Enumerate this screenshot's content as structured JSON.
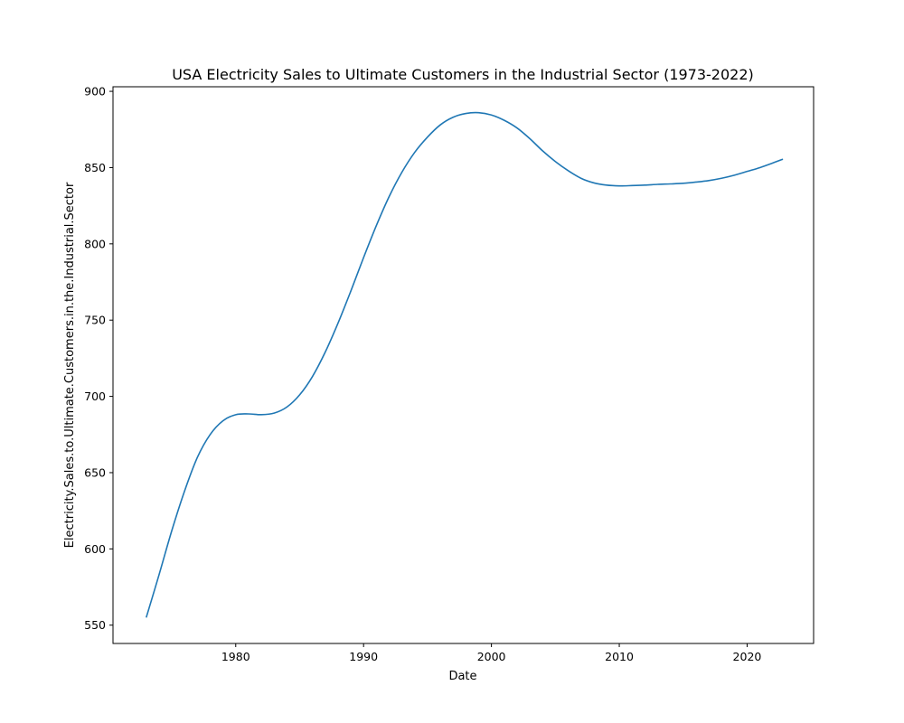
{
  "chart_data": {
    "type": "line",
    "title": "USA Electricity Sales to Ultimate Customers in the Industrial Sector (1973-2022)",
    "xlabel": "Date",
    "ylabel": "Electricity.Sales.to.Ultimate.Customers.in.the.Industrial.Sector",
    "xlim": [
      1970.4,
      2025.2
    ],
    "ylim": [
      538,
      903
    ],
    "x_ticks": [
      1980,
      1990,
      2000,
      2010,
      2020
    ],
    "y_ticks": [
      550,
      600,
      650,
      700,
      750,
      800,
      850,
      900
    ],
    "grid": false,
    "series_color": "#1f77b4",
    "series": [
      {
        "x": [
          1973.0,
          1974.0,
          1975.0,
          1976.0,
          1977.0,
          1978.0,
          1979.0,
          1980.0,
          1981.0,
          1982.0,
          1983.0,
          1984.0,
          1985.0,
          1986.0,
          1987.0,
          1988.0,
          1989.0,
          1990.0,
          1991.0,
          1992.0,
          1993.0,
          1994.0,
          1995.0,
          1996.0,
          1997.0,
          1998.0,
          1999.0,
          2000.0,
          2001.0,
          2002.0,
          2003.0,
          2004.0,
          2005.0,
          2006.0,
          2007.0,
          2008.0,
          2009.0,
          2010.0,
          2011.0,
          2012.0,
          2013.0,
          2014.0,
          2015.0,
          2016.0,
          2017.0,
          2018.0,
          2019.0,
          2020.0,
          2021.0,
          2022.0,
          2022.8
        ],
        "values": [
          555,
          583,
          612,
          638,
          660,
          675,
          684,
          688,
          688.5,
          688,
          689,
          693,
          701,
          713,
          729,
          748,
          769,
          791,
          812,
          831,
          847,
          860,
          870,
          878,
          883,
          885.5,
          886,
          884.5,
          881,
          876,
          869,
          861,
          854,
          848,
          843,
          840,
          838.5,
          838,
          838.2,
          838.5,
          839,
          839.3,
          839.7,
          840.5,
          841.5,
          843,
          845,
          847.5,
          850,
          853,
          855.5
        ]
      }
    ]
  }
}
